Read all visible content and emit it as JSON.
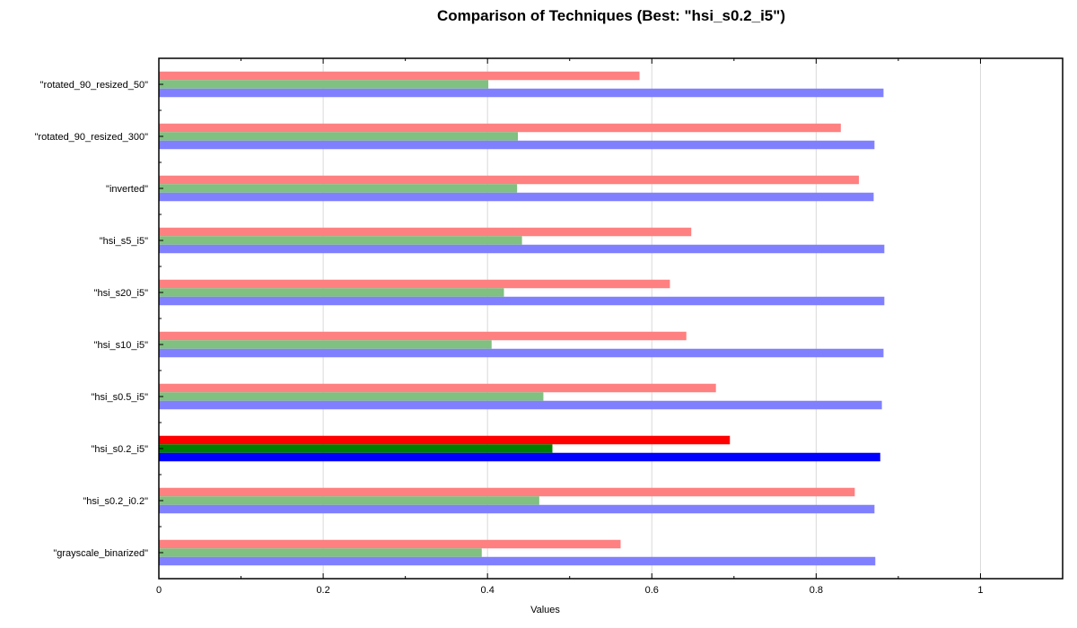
{
  "chart_data": {
    "type": "bar",
    "orientation": "horizontal",
    "title": "Comparison of Techniques (Best: \"hsi_s0.2_i5\")",
    "xlabel": "Values",
    "ylabel": "",
    "xlim": [
      0,
      1.1
    ],
    "xticks": [
      0,
      0.2,
      0.4,
      0.6,
      0.8,
      1
    ],
    "xtick_labels": [
      "0",
      "0.2",
      "0.4",
      "0.6",
      "0.8",
      "1"
    ],
    "grid": "vertical",
    "highlighted_category": "\"hsi_s0.2_i5\"",
    "categories": [
      "\"rotated_90_resized_50\"",
      "\"rotated_90_resized_300\"",
      "\"inverted\"",
      "\"hsi_s5_i5\"",
      "\"hsi_s20_i5\"",
      "\"hsi_s10_i5\"",
      "\"hsi_s0.5_i5\"",
      "\"hsi_s0.2_i5\"",
      "\"hsi_s0.2_i0.2\"",
      "\"grayscale_binarized\""
    ],
    "series": [
      {
        "color": "#ff8080",
        "highlight_color": "#ff0000",
        "values": [
          0.585,
          0.83,
          0.852,
          0.648,
          0.622,
          0.642,
          0.678,
          0.695,
          0.847,
          0.562
        ]
      },
      {
        "color": "#80c080",
        "highlight_color": "#008000",
        "values": [
          0.401,
          0.437,
          0.436,
          0.442,
          0.42,
          0.405,
          0.468,
          0.479,
          0.463,
          0.393
        ]
      },
      {
        "color": "#8080ff",
        "highlight_color": "#0000ff",
        "values": [
          0.882,
          0.871,
          0.87,
          0.883,
          0.883,
          0.882,
          0.88,
          0.878,
          0.871,
          0.872
        ]
      }
    ]
  }
}
